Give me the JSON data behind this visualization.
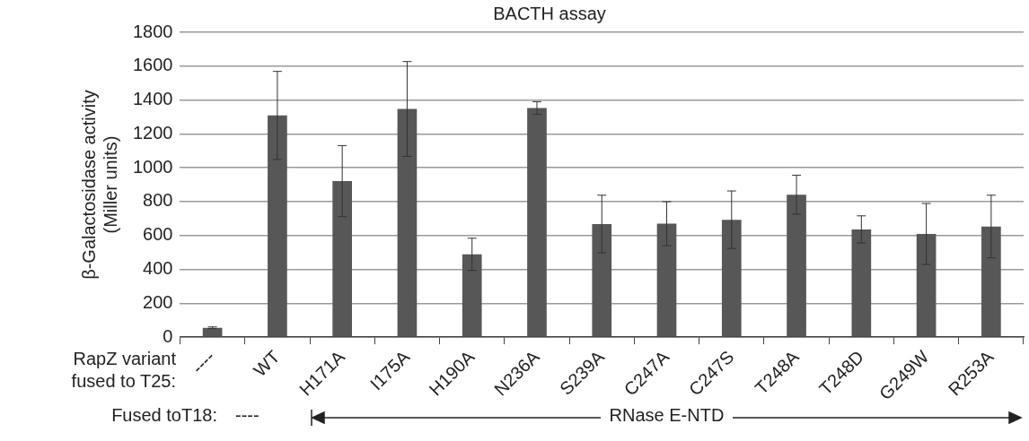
{
  "chart_data": {
    "type": "bar",
    "title": "BACTH assay",
    "ylabel": "β-Galactosidase activity\n(Miller units)",
    "xlabel": "RapZ variant\nfused to T25:",
    "categories": [
      "----",
      "WT",
      "H171A",
      "I175A",
      "H190A",
      "N236A",
      "S239A",
      "C247A",
      "C247S",
      "T248A",
      "T248D",
      "G249W",
      "R253A"
    ],
    "values": [
      55,
      1309,
      921,
      1347,
      489,
      1353,
      668,
      670,
      693,
      841,
      636,
      609,
      653
    ],
    "errors": [
      5,
      260,
      210,
      280,
      95,
      37,
      170,
      130,
      170,
      115,
      80,
      180,
      185
    ],
    "color": "#575757",
    "ylim": [
      0,
      1800
    ],
    "yticks": [
      0,
      200,
      400,
      600,
      800,
      1000,
      1200,
      1400,
      1600,
      1800
    ],
    "grid": "y",
    "annotations": [
      "Fused toT18:",
      "----",
      "RNase E-NTD"
    ]
  }
}
